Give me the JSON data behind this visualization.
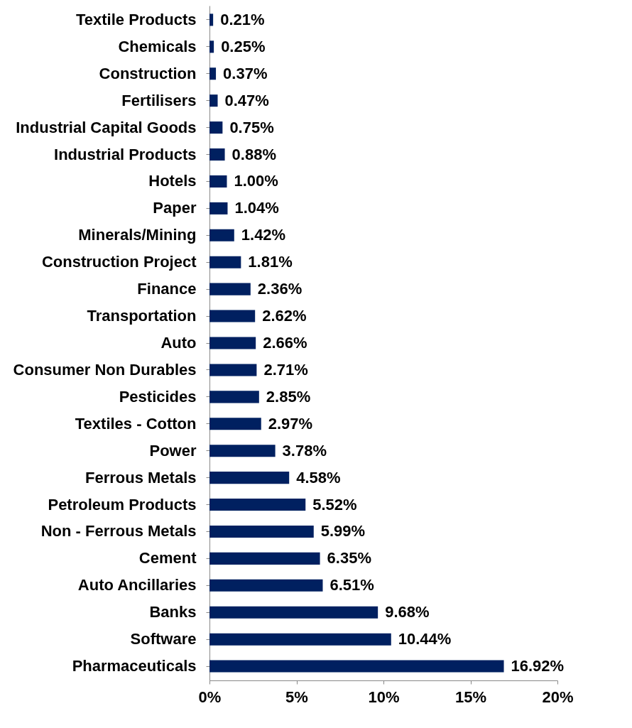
{
  "chart_data": {
    "type": "bar",
    "orientation": "horizontal",
    "categories": [
      "Textile Products",
      "Chemicals",
      "Construction",
      "Fertilisers",
      "Industrial Capital Goods",
      "Industrial Products",
      "Hotels",
      "Paper",
      "Minerals/Mining",
      "Construction Project",
      "Finance",
      "Transportation",
      "Auto",
      "Consumer Non Durables",
      "Pesticides",
      "Textiles - Cotton",
      "Power",
      "Ferrous Metals",
      "Petroleum Products",
      "Non - Ferrous Metals",
      "Cement",
      "Auto Ancillaries",
      "Banks",
      "Software",
      "Pharmaceuticals"
    ],
    "values": [
      0.21,
      0.25,
      0.37,
      0.47,
      0.75,
      0.88,
      1.0,
      1.04,
      1.42,
      1.81,
      2.36,
      2.62,
      2.66,
      2.71,
      2.85,
      2.97,
      3.78,
      4.58,
      5.52,
      5.99,
      6.35,
      6.51,
      9.68,
      10.44,
      16.92
    ],
    "value_labels": [
      "0.21%",
      "0.25%",
      "0.37%",
      "0.47%",
      "0.75%",
      "0.88%",
      "1.00%",
      "1.04%",
      "1.42%",
      "1.81%",
      "2.36%",
      "2.62%",
      "2.66%",
      "2.71%",
      "2.85%",
      "2.97%",
      "3.78%",
      "4.58%",
      "5.52%",
      "5.99%",
      "6.35%",
      "6.51%",
      "9.68%",
      "10.44%",
      "16.92%"
    ],
    "color": "#002060",
    "xlim": [
      0,
      20
    ],
    "xticks": [
      {
        "value": 0,
        "label": "0%"
      },
      {
        "value": 5,
        "label": "5%"
      },
      {
        "value": 10,
        "label": "10%"
      },
      {
        "value": 15,
        "label": "15%"
      },
      {
        "value": 20,
        "label": "20%"
      }
    ],
    "grid": false
  }
}
